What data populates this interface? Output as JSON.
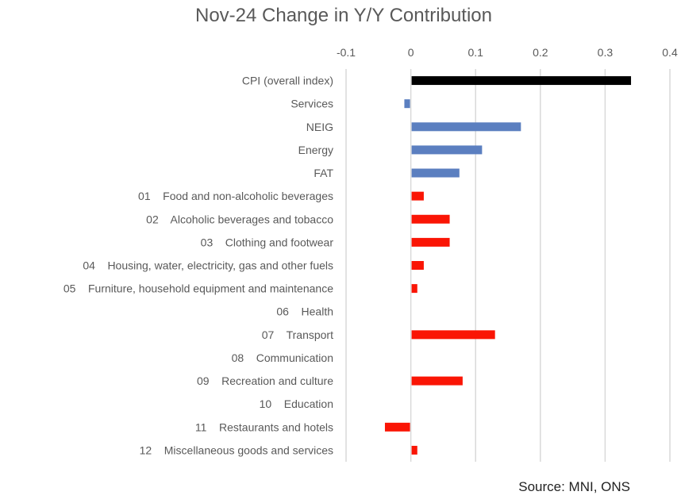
{
  "chart_data": {
    "type": "bar",
    "orientation": "horizontal",
    "title": "Nov-24 Change in Y/Y Contribution",
    "xlabel": "",
    "ylabel": "",
    "xlim": [
      -0.1,
      0.4
    ],
    "x_ticks": [
      "-0.1",
      "0",
      "0.1",
      "0.2",
      "0.3",
      "0.4"
    ],
    "x_tick_values": [
      -0.1,
      0,
      0.1,
      0.2,
      0.3,
      0.4
    ],
    "x_axis_position": "top",
    "grid": true,
    "legend": null,
    "colors": {
      "overall": "#000000",
      "aggregate": "#5b7fc0",
      "division": "#fa1505",
      "grid": "#d9d9d9",
      "text": "#595959"
    },
    "categories": [
      {
        "label": "CPI (overall index)",
        "value": 0.34,
        "group": "overall"
      },
      {
        "label": "Services",
        "value": -0.01,
        "group": "aggregate"
      },
      {
        "label": "NEIG",
        "value": 0.17,
        "group": "aggregate"
      },
      {
        "label": "Energy",
        "value": 0.11,
        "group": "aggregate"
      },
      {
        "label": "FAT",
        "value": 0.075,
        "group": "aggregate"
      },
      {
        "label": "01    Food and non-alcoholic beverages",
        "value": 0.02,
        "group": "division"
      },
      {
        "label": "02    Alcoholic beverages and tobacco",
        "value": 0.06,
        "group": "division"
      },
      {
        "label": "03    Clothing and footwear",
        "value": 0.06,
        "group": "division"
      },
      {
        "label": "04    Housing, water, electricity, gas and other fuels",
        "value": 0.02,
        "group": "division"
      },
      {
        "label": "05    Furniture, household equipment and maintenance",
        "value": 0.01,
        "group": "division"
      },
      {
        "label": "06    Health",
        "value": 0,
        "group": "division"
      },
      {
        "label": "07    Transport",
        "value": 0.13,
        "group": "division"
      },
      {
        "label": "08    Communication",
        "value": 0,
        "group": "division"
      },
      {
        "label": "09    Recreation and culture",
        "value": 0.08,
        "group": "division"
      },
      {
        "label": "10    Education",
        "value": 0,
        "group": "division"
      },
      {
        "label": "11    Restaurants and hotels",
        "value": -0.04,
        "group": "division"
      },
      {
        "label": "12    Miscellaneous goods and services",
        "value": 0.01,
        "group": "division"
      }
    ]
  },
  "source": "Source: MNI, ONS"
}
